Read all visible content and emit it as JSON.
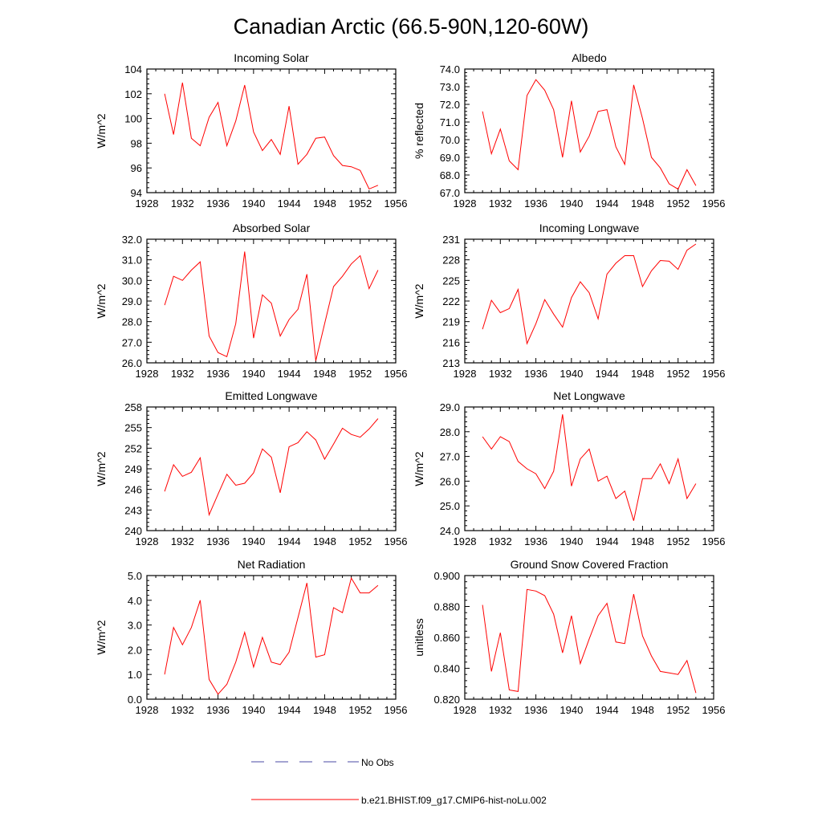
{
  "figure": {
    "title": "Canadian Arctic (66.5-90N,120-60W)",
    "series_color": "#ff0000",
    "obs_color": "#4a4aa6"
  },
  "legend": {
    "obs_label": "No Obs",
    "model_label": "b.e21.BHIST.f09_g17.CMIP6-hist-noLu.002"
  },
  "chart_data": [
    {
      "type": "line",
      "title": "Incoming Solar",
      "ylabel": "W/m^2",
      "xlim": [
        1928,
        1956
      ],
      "xticks": [
        "1928",
        "1932",
        "1936",
        "1940",
        "1944",
        "1948",
        "1952",
        "1956"
      ],
      "ylim": [
        94,
        104
      ],
      "yticks": [
        "94",
        "96",
        "98",
        "100",
        "102",
        "104"
      ],
      "grid": false,
      "series": [
        {
          "x": [
            1930,
            1931,
            1932,
            1933,
            1934,
            1935,
            1936,
            1937,
            1938,
            1939,
            1940,
            1941,
            1942,
            1943,
            1944,
            1945,
            1946,
            1947,
            1948,
            1949,
            1950,
            1951,
            1952,
            1953,
            1954
          ],
          "values": [
            102.0,
            98.7,
            102.9,
            98.4,
            97.8,
            100.1,
            101.3,
            97.8,
            99.8,
            102.7,
            98.9,
            97.4,
            98.3,
            97.1,
            101.0,
            96.3,
            97.1,
            98.4,
            98.5,
            97.0,
            96.2,
            96.1,
            95.8,
            94.3,
            94.6
          ]
        }
      ]
    },
    {
      "type": "line",
      "title": "Albedo",
      "ylabel": "% reflected",
      "xlim": [
        1928,
        1956
      ],
      "xticks": [
        "1928",
        "1932",
        "1936",
        "1940",
        "1944",
        "1948",
        "1952",
        "1956"
      ],
      "ylim": [
        67,
        74
      ],
      "yticks": [
        "67.0",
        "68.0",
        "69.0",
        "70.0",
        "71.0",
        "72.0",
        "73.0",
        "74.0"
      ],
      "grid": false,
      "series": [
        {
          "x": [
            1930,
            1931,
            1932,
            1933,
            1934,
            1935,
            1936,
            1937,
            1938,
            1939,
            1940,
            1941,
            1942,
            1943,
            1944,
            1945,
            1946,
            1947,
            1948,
            1949,
            1950,
            1951,
            1952,
            1953,
            1954
          ],
          "values": [
            71.6,
            69.2,
            70.6,
            68.8,
            68.3,
            72.5,
            73.4,
            72.8,
            71.7,
            69.0,
            72.2,
            69.3,
            70.2,
            71.6,
            71.7,
            69.6,
            68.6,
            73.1,
            71.2,
            69.0,
            68.4,
            67.5,
            67.2,
            68.3,
            67.4
          ]
        }
      ]
    },
    {
      "type": "line",
      "title": "Absorbed Solar",
      "ylabel": "W/m^2",
      "xlim": [
        1928,
        1956
      ],
      "xticks": [
        "1928",
        "1932",
        "1936",
        "1940",
        "1944",
        "1948",
        "1952",
        "1956"
      ],
      "ylim": [
        26,
        32
      ],
      "yticks": [
        "26.0",
        "27.0",
        "28.0",
        "29.0",
        "30.0",
        "31.0",
        "32.0"
      ],
      "grid": false,
      "series": [
        {
          "x": [
            1930,
            1931,
            1932,
            1933,
            1934,
            1935,
            1936,
            1937,
            1938,
            1939,
            1940,
            1941,
            1942,
            1943,
            1944,
            1945,
            1946,
            1947,
            1948,
            1949,
            1950,
            1951,
            1952,
            1953,
            1954
          ],
          "values": [
            28.8,
            30.2,
            30.0,
            30.5,
            30.9,
            27.3,
            26.5,
            26.3,
            27.9,
            31.4,
            27.2,
            29.3,
            28.9,
            27.3,
            28.1,
            28.6,
            30.3,
            26.1,
            27.9,
            29.7,
            30.2,
            30.8,
            31.2,
            29.6,
            30.5
          ]
        }
      ]
    },
    {
      "type": "line",
      "title": "Incoming Longwave",
      "ylabel": "W/m^2",
      "xlim": [
        1928,
        1956
      ],
      "xticks": [
        "1928",
        "1932",
        "1936",
        "1940",
        "1944",
        "1948",
        "1952",
        "1956"
      ],
      "ylim": [
        213,
        231
      ],
      "yticks": [
        "213",
        "216",
        "219",
        "222",
        "225",
        "228",
        "231"
      ],
      "grid": false,
      "series": [
        {
          "x": [
            1930,
            1931,
            1932,
            1933,
            1934,
            1935,
            1936,
            1937,
            1938,
            1939,
            1940,
            1941,
            1942,
            1943,
            1944,
            1945,
            1946,
            1947,
            1948,
            1949,
            1950,
            1951,
            1952,
            1953,
            1954
          ],
          "values": [
            217.9,
            222.1,
            220.3,
            220.9,
            223.7,
            215.8,
            218.7,
            222.2,
            220.1,
            218.2,
            222.5,
            224.8,
            223.2,
            219.4,
            225.9,
            227.5,
            228.6,
            228.6,
            224.1,
            226.4,
            227.9,
            227.8,
            226.6,
            229.4,
            230.3
          ]
        }
      ]
    },
    {
      "type": "line",
      "title": "Emitted Longwave",
      "ylabel": "W/m^2",
      "xlim": [
        1928,
        1956
      ],
      "xticks": [
        "1928",
        "1932",
        "1936",
        "1940",
        "1944",
        "1948",
        "1952",
        "1956"
      ],
      "ylim": [
        240,
        258
      ],
      "yticks": [
        "240",
        "243",
        "246",
        "249",
        "252",
        "255",
        "258"
      ],
      "grid": false,
      "series": [
        {
          "x": [
            1930,
            1931,
            1932,
            1933,
            1934,
            1935,
            1936,
            1937,
            1938,
            1939,
            1940,
            1941,
            1942,
            1943,
            1944,
            1945,
            1946,
            1947,
            1948,
            1949,
            1950,
            1951,
            1952,
            1953,
            1954
          ],
          "values": [
            245.7,
            249.6,
            247.9,
            248.5,
            250.6,
            242.3,
            245.3,
            248.2,
            246.6,
            246.9,
            248.4,
            251.9,
            250.7,
            245.5,
            252.2,
            252.8,
            254.4,
            253.2,
            250.4,
            252.6,
            254.9,
            254.0,
            253.6,
            254.8,
            256.3
          ]
        }
      ]
    },
    {
      "type": "line",
      "title": "Net Longwave",
      "ylabel": "W/m^2",
      "xlim": [
        1928,
        1956
      ],
      "xticks": [
        "1928",
        "1932",
        "1936",
        "1940",
        "1944",
        "1948",
        "1952",
        "1956"
      ],
      "ylim": [
        24,
        29
      ],
      "yticks": [
        "24.0",
        "25.0",
        "26.0",
        "27.0",
        "28.0",
        "29.0"
      ],
      "grid": false,
      "series": [
        {
          "x": [
            1930,
            1931,
            1932,
            1933,
            1934,
            1935,
            1936,
            1937,
            1938,
            1939,
            1940,
            1941,
            1942,
            1943,
            1944,
            1945,
            1946,
            1947,
            1948,
            1949,
            1950,
            1951,
            1952,
            1953,
            1954
          ],
          "values": [
            27.8,
            27.3,
            27.8,
            27.6,
            26.8,
            26.5,
            26.3,
            25.7,
            26.4,
            28.7,
            25.8,
            26.9,
            27.3,
            26.0,
            26.2,
            25.3,
            25.6,
            24.4,
            26.1,
            26.1,
            26.7,
            25.9,
            26.9,
            25.3,
            25.9
          ]
        }
      ]
    },
    {
      "type": "line",
      "title": "Net Radiation",
      "ylabel": "W/m^2",
      "xlim": [
        1928,
        1956
      ],
      "xticks": [
        "1928",
        "1932",
        "1936",
        "1940",
        "1944",
        "1948",
        "1952",
        "1956"
      ],
      "ylim": [
        0,
        5
      ],
      "yticks": [
        "0.0",
        "1.0",
        "2.0",
        "3.0",
        "4.0",
        "5.0"
      ],
      "grid": false,
      "series": [
        {
          "x": [
            1930,
            1931,
            1932,
            1933,
            1934,
            1935,
            1936,
            1937,
            1938,
            1939,
            1940,
            1941,
            1942,
            1943,
            1944,
            1945,
            1946,
            1947,
            1948,
            1949,
            1950,
            1951,
            1952,
            1953,
            1954
          ],
          "values": [
            1.0,
            2.9,
            2.2,
            2.9,
            4.0,
            0.8,
            0.2,
            0.6,
            1.5,
            2.7,
            1.3,
            2.5,
            1.5,
            1.4,
            1.9,
            3.3,
            4.7,
            1.7,
            1.8,
            3.7,
            3.5,
            4.9,
            4.3,
            4.3,
            4.6
          ]
        }
      ]
    },
    {
      "type": "line",
      "title": "Ground Snow Covered Fraction",
      "ylabel": "unitless",
      "xlim": [
        1928,
        1956
      ],
      "xticks": [
        "1928",
        "1932",
        "1936",
        "1940",
        "1944",
        "1948",
        "1952",
        "1956"
      ],
      "ylim": [
        0.82,
        0.9
      ],
      "yticks": [
        "0.820",
        "0.840",
        "0.860",
        "0.880",
        "0.900"
      ],
      "grid": false,
      "series": [
        {
          "x": [
            1930,
            1931,
            1932,
            1933,
            1934,
            1935,
            1936,
            1937,
            1938,
            1939,
            1940,
            1941,
            1942,
            1943,
            1944,
            1945,
            1946,
            1947,
            1948,
            1949,
            1950,
            1951,
            1952,
            1953,
            1954
          ],
          "values": [
            0.881,
            0.838,
            0.863,
            0.826,
            0.825,
            0.891,
            0.89,
            0.887,
            0.875,
            0.85,
            0.874,
            0.843,
            0.859,
            0.874,
            0.882,
            0.857,
            0.856,
            0.888,
            0.861,
            0.848,
            0.838,
            0.837,
            0.836,
            0.845,
            0.824
          ]
        }
      ]
    }
  ]
}
